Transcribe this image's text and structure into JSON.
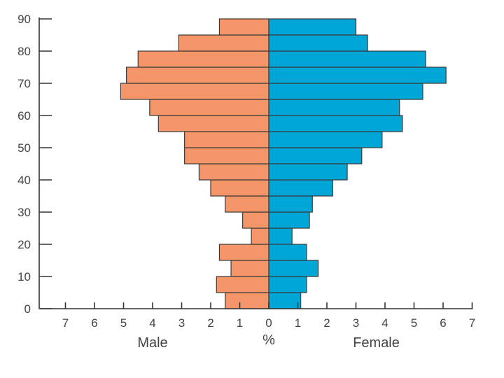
{
  "chart_data": {
    "type": "bar",
    "orientation": "horizontal",
    "subtype": "population-pyramid",
    "age_groups": [
      "0-4",
      "5-9",
      "10-14",
      "15-19",
      "20-24",
      "25-29",
      "30-34",
      "35-39",
      "40-44",
      "45-49",
      "50-54",
      "55-59",
      "60-64",
      "65-69",
      "70-74",
      "75-79",
      "80-84",
      "85-89"
    ],
    "series": [
      {
        "name": "Male",
        "color": "#F4956A",
        "side": "left",
        "values": [
          1.5,
          1.8,
          1.3,
          1.7,
          0.6,
          0.9,
          1.5,
          2.0,
          2.4,
          2.9,
          2.9,
          3.8,
          4.1,
          5.1,
          4.9,
          4.5,
          3.1,
          1.7
        ]
      },
      {
        "name": "Female",
        "color": "#00A6D6",
        "side": "right",
        "values": [
          1.1,
          1.3,
          1.7,
          1.3,
          0.8,
          1.4,
          1.5,
          2.2,
          2.7,
          3.2,
          3.9,
          4.6,
          4.5,
          5.3,
          6.1,
          5.4,
          3.4,
          3.0
        ]
      }
    ],
    "xlabel_left": "Male",
    "xlabel_center": "%",
    "xlabel_right": "Female",
    "x_tick_labels": [
      "7",
      "6",
      "5",
      "4",
      "3",
      "2",
      "1",
      "0",
      "1",
      "2",
      "3",
      "4",
      "5",
      "6",
      "7"
    ],
    "y_tick_labels": [
      "0",
      "10",
      "20",
      "30",
      "40",
      "50",
      "60",
      "70",
      "80",
      "90"
    ],
    "xlim": [
      -7,
      7
    ],
    "ylim": [
      0,
      90
    ],
    "grid": false,
    "legend": "none"
  }
}
